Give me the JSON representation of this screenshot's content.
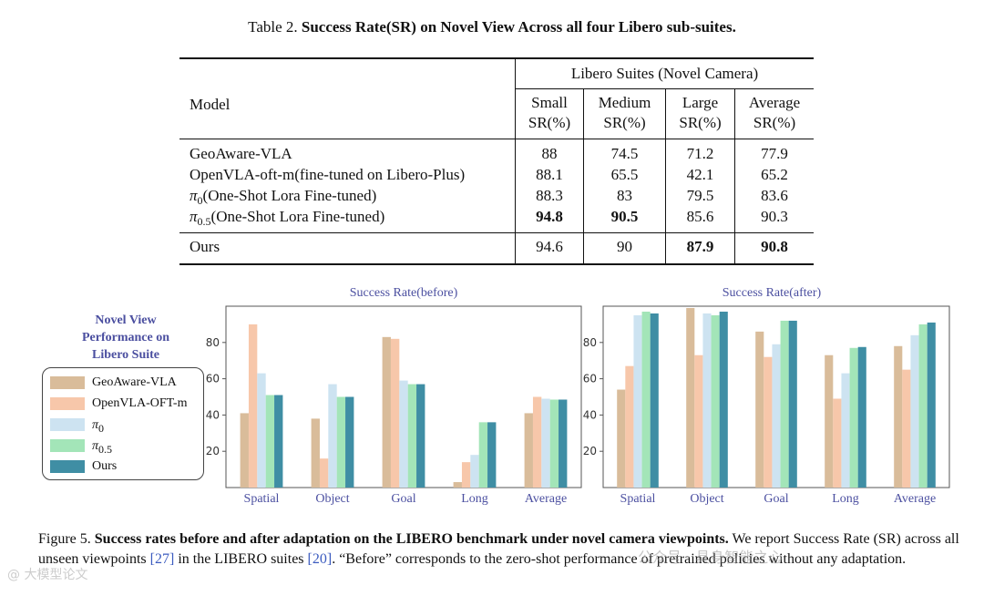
{
  "table": {
    "caption_prefix": "Table 2.",
    "caption_bold": "Success Rate(SR) on Novel View Across all four Libero sub-suites.",
    "group_header": "Libero Suites (Novel Camera)",
    "model_header": "Model",
    "columns": [
      {
        "name": "Small",
        "unit": "SR(%)"
      },
      {
        "name": "Medium",
        "unit": "SR(%)"
      },
      {
        "name": "Large",
        "unit": "SR(%)"
      },
      {
        "name": "Average",
        "unit": "SR(%)"
      }
    ],
    "rows": [
      {
        "model": "GeoAware-VLA",
        "values": [
          "88",
          "74.5",
          "71.2",
          "77.9"
        ],
        "bold": [
          false,
          false,
          false,
          false
        ]
      },
      {
        "model": "OpenVLA-oft-m(fine-tuned on Libero-Plus)",
        "values": [
          "88.1",
          "65.5",
          "42.1",
          "65.2"
        ],
        "bold": [
          false,
          false,
          false,
          false
        ]
      },
      {
        "model_symbol": "π",
        "model_sub": "0",
        "model_rest": "(One-Shot Lora Fine-tuned)",
        "values": [
          "88.3",
          "83",
          "79.5",
          "83.6"
        ],
        "bold": [
          false,
          false,
          false,
          false
        ]
      },
      {
        "model_symbol": "π",
        "model_sub": "0.5",
        "model_rest": "(One-Shot Lora Fine-tuned)",
        "values": [
          "94.8",
          "90.5",
          "85.6",
          "90.3"
        ],
        "bold": [
          true,
          true,
          false,
          false
        ]
      }
    ],
    "ours_row": {
      "model": "Ours",
      "values": [
        "94.6",
        "90",
        "87.9",
        "90.8"
      ],
      "bold": [
        false,
        false,
        true,
        true
      ]
    }
  },
  "legend": {
    "title_lines": [
      "Novel View",
      "Performance on",
      "Libero Suite"
    ],
    "items": [
      {
        "label": "GeoAware-VLA",
        "color": "#d9bc9a"
      },
      {
        "label": "OpenVLA-OFT-m",
        "color": "#f7c7aa"
      },
      {
        "label_symbol": "π",
        "label_sub": "0",
        "color": "#cde3f1"
      },
      {
        "label_symbol": "π",
        "label_sub": "0.5",
        "color": "#a3e5b8"
      },
      {
        "label": "Ours",
        "color": "#3f8ea4"
      }
    ]
  },
  "chart_data": [
    {
      "type": "bar",
      "title": "Success Rate(before)",
      "categories": [
        "Spatial",
        "Object",
        "Goal",
        "Long",
        "Average"
      ],
      "ylim": [
        0,
        100
      ],
      "yticks": [
        20,
        40,
        60,
        80
      ],
      "series": [
        {
          "name": "GeoAware-VLA",
          "values": [
            41,
            38,
            83,
            3,
            41
          ]
        },
        {
          "name": "OpenVLA-OFT-m",
          "values": [
            90,
            16,
            82,
            14,
            50
          ]
        },
        {
          "name": "π0",
          "values": [
            63,
            57,
            59,
            18,
            49
          ]
        },
        {
          "name": "π0.5",
          "values": [
            51,
            50,
            57,
            36,
            48.5
          ]
        },
        {
          "name": "Ours",
          "values": [
            51,
            50,
            57,
            36,
            48.5
          ]
        }
      ]
    },
    {
      "type": "bar",
      "title": "Success Rate(after)",
      "categories": [
        "Spatial",
        "Object",
        "Goal",
        "Long",
        "Average"
      ],
      "ylim": [
        0,
        100
      ],
      "yticks": [
        20,
        40,
        60,
        80
      ],
      "series": [
        {
          "name": "GeoAware-VLA",
          "values": [
            54,
            99,
            86,
            73,
            78
          ]
        },
        {
          "name": "OpenVLA-OFT-m",
          "values": [
            67,
            73,
            72,
            49,
            65
          ]
        },
        {
          "name": "π0",
          "values": [
            95,
            96,
            79,
            63,
            84
          ]
        },
        {
          "name": "π0.5",
          "values": [
            97,
            95,
            92,
            77,
            90
          ]
        },
        {
          "name": "Ours",
          "values": [
            96,
            97,
            92,
            77.5,
            91
          ]
        }
      ]
    }
  ],
  "figure_caption": {
    "prefix": "Figure 5.",
    "bold": "Success rates before and after adaptation on the LIBERO benchmark under novel camera viewpoints.",
    "text_1": "We report Success Rate (SR) across all unseen viewpoints",
    "cite_1": "[27]",
    "text_2": "in the LIBERO suites",
    "cite_2": "[20]",
    "text_3": ". “Before” corresponds to the zero-shot performance of pretrained policies without any adaptation."
  },
  "watermarks": {
    "left": "@ 大模型论文",
    "right": "公众号 · 具身智能之心"
  }
}
